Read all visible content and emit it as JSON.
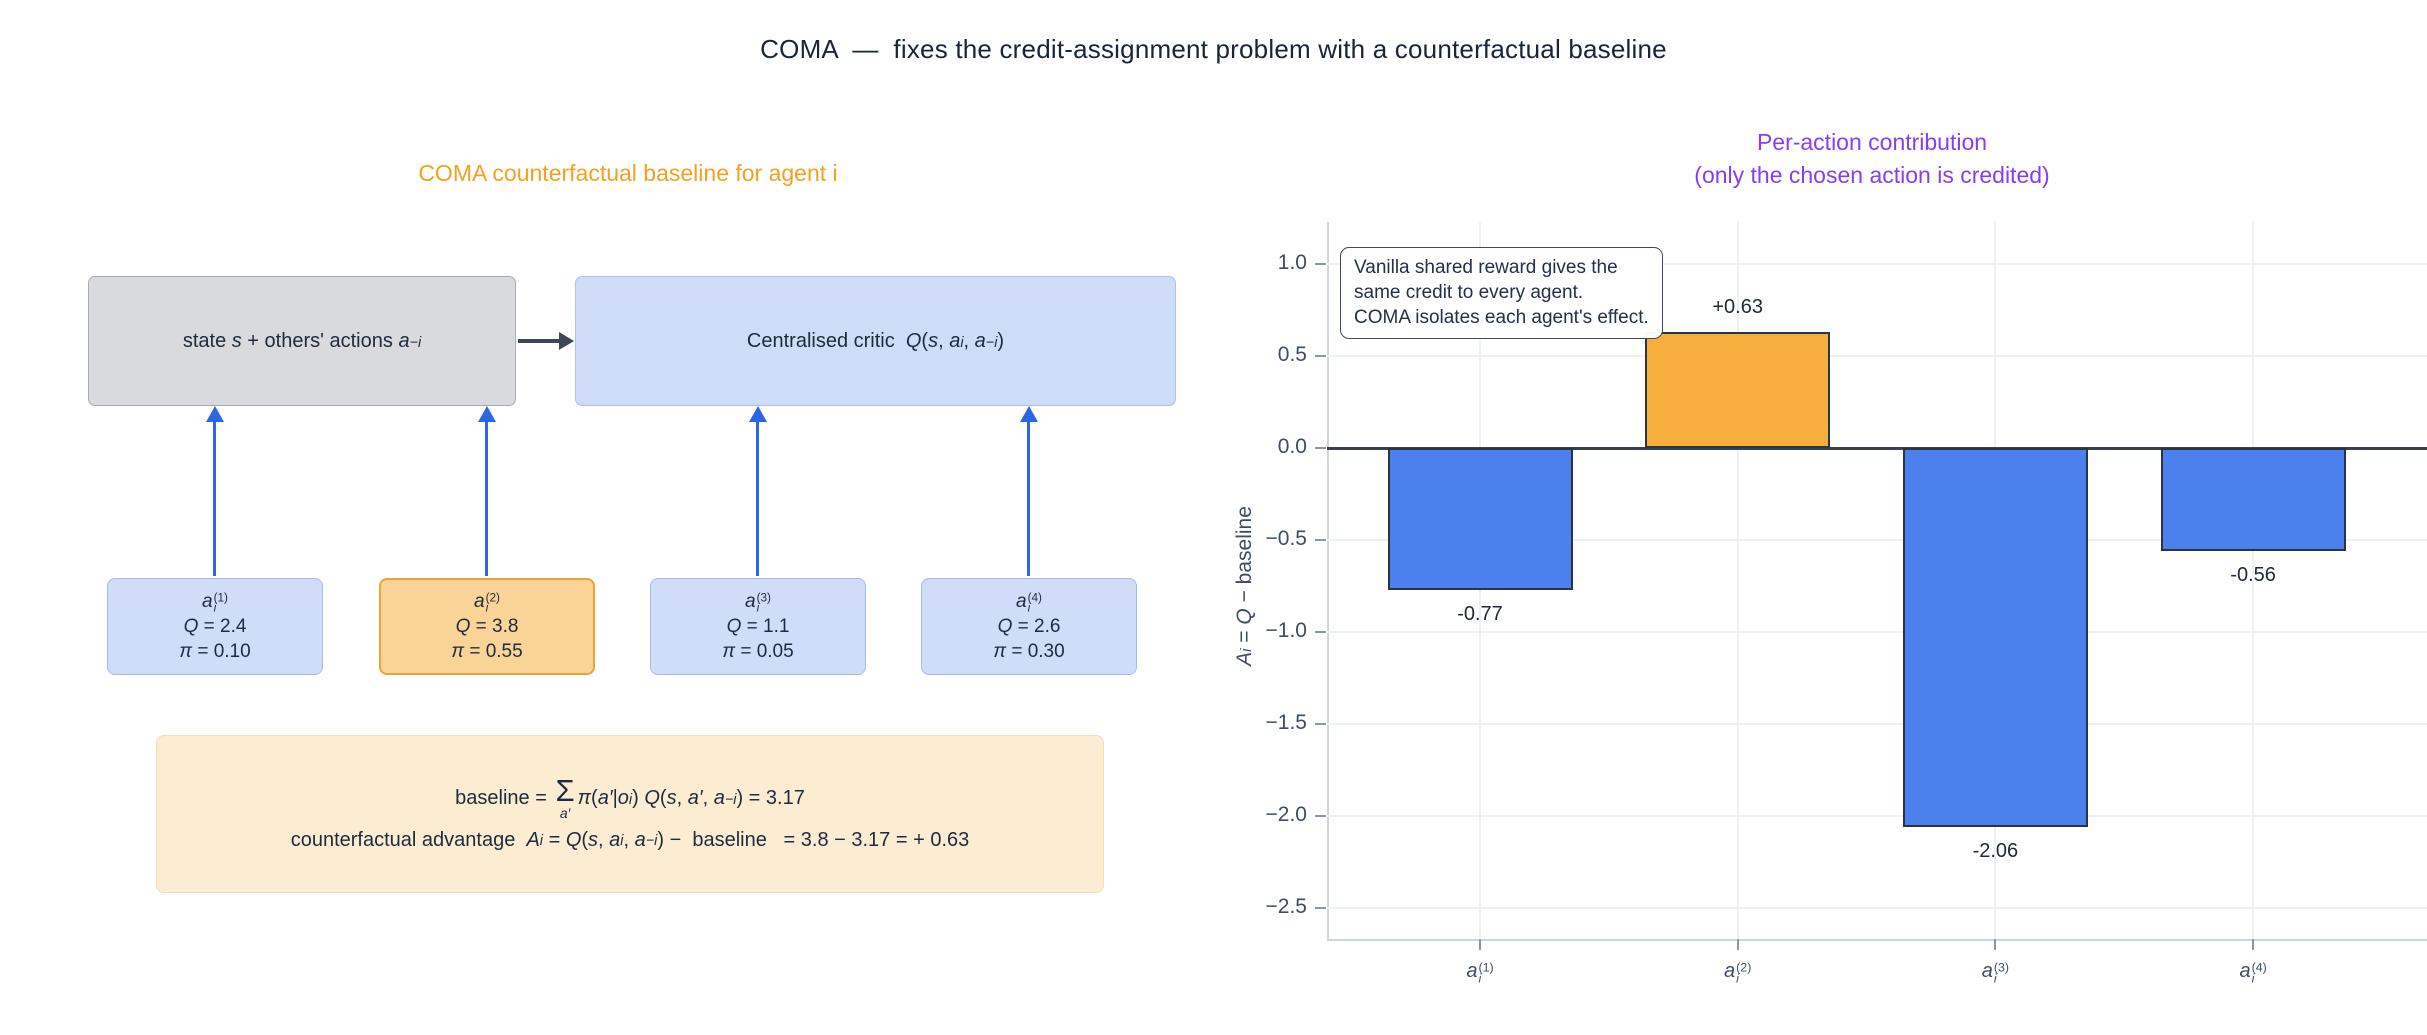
{
  "title": "COMA  —  fixes the credit-assignment problem with a counterfactual baseline",
  "colors": {
    "title_navy": "#19243a",
    "diagram_title_orange": "#f5a01f",
    "chart_title_purple": "#8a3cf0",
    "arrow_blue": "#2a66e6",
    "arrow_orange": "#f5a423",
    "bar_blue": "#4c80ec",
    "bar_orange": "#f6ae3d",
    "bar_edge": "#2b3442",
    "state_box_fill": "#d8dade",
    "critic_box_fill": "#cfdcf8",
    "agent_box_fill": "#d0ddf8",
    "agent_box_highlight_fill": "#fad396",
    "formula_box_fill": "#fcedd2"
  },
  "left_panel": {
    "title": "COMA counterfactual baseline for agent i",
    "state_box_parts": [
      {
        "t": "state "
      },
      {
        "t": "s",
        "i": 1
      },
      {
        "t": " + others' actions "
      },
      {
        "t": "a",
        "i": 1
      },
      {
        "t": "−i",
        "i": 1,
        "s": 1
      }
    ],
    "critic_box_parts": [
      {
        "t": "Centralised critic  "
      },
      {
        "t": "Q",
        "i": 1
      },
      {
        "t": "("
      },
      {
        "t": "s",
        "i": 1
      },
      {
        "t": ", "
      },
      {
        "t": "a",
        "i": 1
      },
      {
        "t": "i",
        "i": 1,
        "s": 1
      },
      {
        "t": ", "
      },
      {
        "t": "a",
        "i": 1
      },
      {
        "t": "−i",
        "i": 1,
        "s": 1
      },
      {
        "t": ")"
      }
    ],
    "agents": [
      {
        "label": {
          "base": "a",
          "sub": "i",
          "sup": "(1)"
        },
        "q": [
          {
            "t": "Q",
            "i": 1
          },
          {
            "t": " = 2.4"
          }
        ],
        "pi": [
          {
            "t": "π",
            "i": 1
          },
          {
            "t": " = 0.10"
          }
        ],
        "highlight": false
      },
      {
        "label": {
          "base": "a",
          "sub": "i",
          "sup": "(2)"
        },
        "q": [
          {
            "t": "Q",
            "i": 1
          },
          {
            "t": " = 3.8"
          }
        ],
        "pi": [
          {
            "t": "π",
            "i": 1
          },
          {
            "t": " = 0.55"
          }
        ],
        "highlight": true
      },
      {
        "label": {
          "base": "a",
          "sub": "i",
          "sup": "(3)"
        },
        "q": [
          {
            "t": "Q",
            "i": 1
          },
          {
            "t": " = 1.1"
          }
        ],
        "pi": [
          {
            "t": "π",
            "i": 1
          },
          {
            "t": " = 0.05"
          }
        ],
        "highlight": false
      },
      {
        "label": {
          "base": "a",
          "sub": "i",
          "sup": "(4)"
        },
        "q": [
          {
            "t": "Q",
            "i": 1
          },
          {
            "t": " = 2.6"
          }
        ],
        "pi": [
          {
            "t": "π",
            "i": 1
          },
          {
            "t": " = 0.30"
          }
        ],
        "highlight": false
      }
    ],
    "formula": {
      "line1_pre": [
        {
          "t": "baseline = "
        }
      ],
      "sigma": "Σ",
      "sigma_sub": [
        {
          "t": "a′",
          "i": 1
        }
      ],
      "line1_post": [
        {
          "t": "π",
          "i": 1
        },
        {
          "t": "("
        },
        {
          "t": "a′",
          "i": 1
        },
        {
          "t": "|"
        },
        {
          "t": "o",
          "i": 1
        },
        {
          "t": "i",
          "i": 1,
          "s": 1
        },
        {
          "t": ") "
        },
        {
          "t": "Q",
          "i": 1
        },
        {
          "t": "("
        },
        {
          "t": "s",
          "i": 1
        },
        {
          "t": ", "
        },
        {
          "t": "a′",
          "i": 1
        },
        {
          "t": ", "
        },
        {
          "t": "a",
          "i": 1
        },
        {
          "t": "−i",
          "i": 1,
          "s": 1
        },
        {
          "t": ") = 3.17"
        }
      ],
      "line2": [
        {
          "t": "counterfactual advantage  "
        },
        {
          "t": "A",
          "i": 1
        },
        {
          "t": "i",
          "i": 1,
          "s": 1
        },
        {
          "t": " = "
        },
        {
          "t": "Q",
          "i": 1
        },
        {
          "t": "("
        },
        {
          "t": "s",
          "i": 1
        },
        {
          "t": ", "
        },
        {
          "t": "a",
          "i": 1
        },
        {
          "t": "i",
          "i": 1,
          "s": 1
        },
        {
          "t": ", "
        },
        {
          "t": "a",
          "i": 1
        },
        {
          "t": "−i",
          "i": 1,
          "s": 1
        },
        {
          "t": ") −  baseline   = 3.8 − 3.17 = + 0.63"
        }
      ]
    }
  },
  "chart": {
    "title_line1": "Per-action contribution",
    "title_line2": "(only the chosen action is credited)",
    "ylabel_parts": [
      {
        "t": "A",
        "i": 1
      },
      {
        "t": "i",
        "i": 1,
        "s": 1
      },
      {
        "t": " = "
      },
      {
        "t": "Q",
        "i": 1
      },
      {
        "t": " − baseline"
      }
    ],
    "annotation_lines": [
      "Vanilla shared reward gives the",
      "same credit to every agent.",
      "COMA isolates each agent's effect."
    ]
  },
  "chart_data": {
    "type": "bar",
    "title": "Per-action contribution (only the chosen action is credited)",
    "categories": [
      "aᵢ⁽¹⁾",
      "aᵢ⁽²⁾",
      "aᵢ⁽³⁾",
      "aᵢ⁽⁴⁾"
    ],
    "category_parts": [
      {
        "base": "a",
        "sub": "i",
        "sup": "(1)"
      },
      {
        "base": "a",
        "sub": "i",
        "sup": "(2)"
      },
      {
        "base": "a",
        "sub": "i",
        "sup": "(3)"
      },
      {
        "base": "a",
        "sub": "i",
        "sup": "(4)"
      }
    ],
    "values": [
      -0.77,
      0.63,
      -2.06,
      -0.56
    ],
    "bar_labels": [
      "-0.77",
      "+0.63",
      "-2.06",
      "-0.56"
    ],
    "bar_colors": [
      "#4c80ec",
      "#f6ae3d",
      "#4c80ec",
      "#4c80ec"
    ],
    "highlight_index": 1,
    "xlabel": "",
    "ylabel": "Aᵢ = Q − baseline",
    "yticks": [
      1.0,
      0.5,
      0.0,
      -0.5,
      -1.0,
      -1.5,
      -2.0,
      -2.5
    ],
    "ytick_labels": [
      "1.0",
      "0.5",
      "0.0",
      "−0.5",
      "−1.0",
      "−1.5",
      "−2.0",
      "−2.5"
    ],
    "ylim": [
      -2.67,
      1.23
    ],
    "grid": true,
    "zero_line": true,
    "legend": null,
    "annotation": "Vanilla shared reward gives the same credit to every agent. COMA isolates each agent's effect."
  }
}
